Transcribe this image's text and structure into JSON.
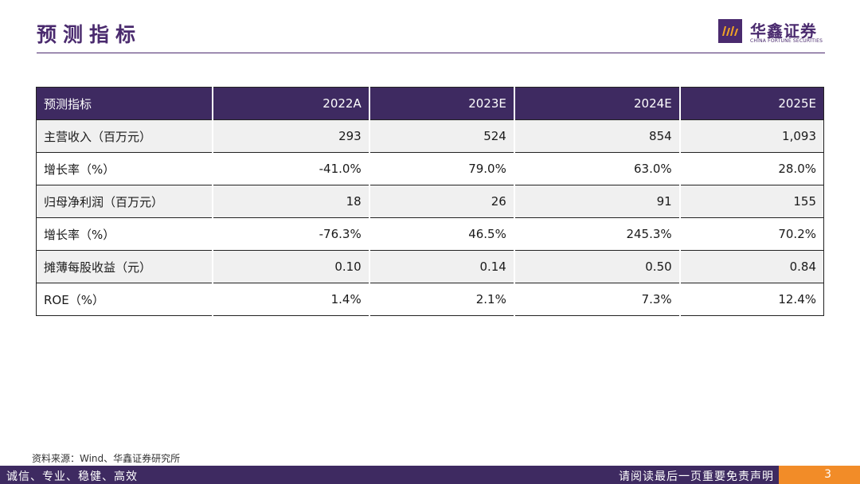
{
  "header": {
    "title": "预测指标",
    "logo_cn": "华鑫证券",
    "logo_en": "CHINA FORTUNE SECURITIES",
    "brand_color": "#4a2a6e"
  },
  "table": {
    "columns": [
      "预测指标",
      "2022A",
      "2023E",
      "2024E",
      "2025E"
    ],
    "rows": [
      [
        "主营收入（百万元）",
        "293",
        "524",
        "854",
        "1,093"
      ],
      [
        "增长率（%）",
        "-41.0%",
        "79.0%",
        "63.0%",
        "28.0%"
      ],
      [
        "归母净利润（百万元）",
        "18",
        "26",
        "91",
        "155"
      ],
      [
        "增长率（%）",
        "-76.3%",
        "46.5%",
        "245.3%",
        "70.2%"
      ],
      [
        "摊薄每股收益（元）",
        "0.10",
        "0.14",
        "0.50",
        "0.84"
      ],
      [
        "ROE（%）",
        "1.4%",
        "2.1%",
        "7.3%",
        "12.4%"
      ]
    ]
  },
  "source": "资料来源：Wind、华鑫证券研究所",
  "footer": {
    "left": "诚信、专业、稳健、高效",
    "right": "请阅读最后一页重要免责声明",
    "page": "3",
    "accent_color": "#f28c28"
  }
}
